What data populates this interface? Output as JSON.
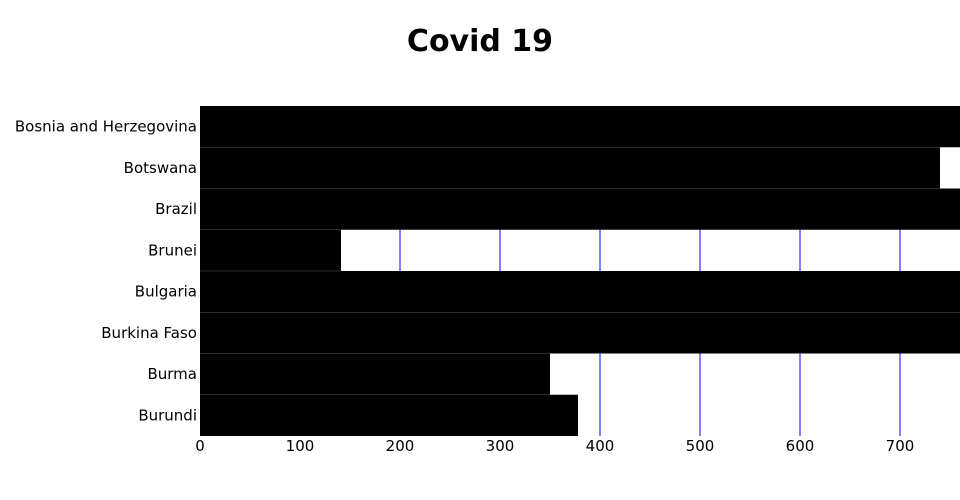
{
  "chart_data": {
    "type": "bar",
    "orientation": "horizontal",
    "title": "Covid 19",
    "xlabel": "",
    "ylabel": "",
    "categories": [
      "Bosnia and Herzegovina",
      "Botswana",
      "Brazil",
      "Brunei",
      "Bulgaria",
      "Burkina Faso",
      "Burma",
      "Burundi"
    ],
    "values": [
      760,
      740,
      760,
      141,
      760,
      760,
      350,
      378
    ],
    "xlim": [
      0,
      760
    ],
    "xticks": [
      0,
      100,
      200,
      300,
      400,
      500,
      600,
      700
    ],
    "grid": "vertical",
    "colors": {
      "bar": "#000000",
      "grid": "#0000ff",
      "separator": "#555555"
    }
  }
}
